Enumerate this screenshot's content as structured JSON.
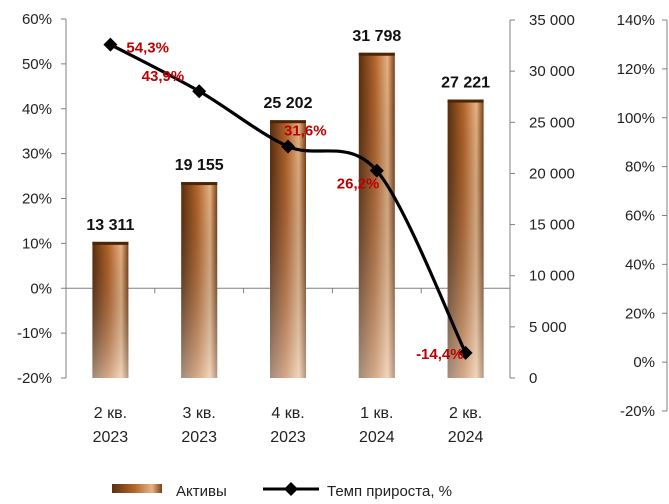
{
  "chart_data": {
    "type": "bar+line",
    "categories": [
      [
        "2 кв.",
        "2023"
      ],
      [
        "3 кв.",
        "2023"
      ],
      [
        "4 кв.",
        "2023"
      ],
      [
        "1 кв.",
        "2024"
      ],
      [
        "2 кв.",
        "2024"
      ]
    ],
    "series": [
      {
        "name": "Активы",
        "type": "bar",
        "axis": "right",
        "values": [
          13311,
          19155,
          25202,
          31798,
          27221
        ],
        "labels": [
          "13 311",
          "19 155",
          "25 202",
          "31 798",
          "27 221"
        ]
      },
      {
        "name": "Темп прироста, %",
        "type": "line",
        "axis": "left",
        "values": [
          54.3,
          43.9,
          31.6,
          26.2,
          -14.4
        ],
        "labels": [
          "54,3%",
          "43,9%",
          "31,6%",
          "26,2%",
          "-14,4%"
        ]
      }
    ],
    "left_axis": {
      "min": -20,
      "max": 60,
      "step": 10,
      "labels": [
        "-20%",
        "-10%",
        "0%",
        "10%",
        "20%",
        "30%",
        "40%",
        "50%",
        "60%"
      ]
    },
    "right_axis": {
      "min": 0,
      "max": 35000,
      "step": 5000,
      "labels": [
        "0",
        "5 000",
        "10 000",
        "15 000",
        "20 000",
        "25 000",
        "30 000",
        "35 000"
      ]
    },
    "far_right_axis": {
      "min": -20,
      "max": 140,
      "step": 20,
      "labels": [
        "-20%",
        "0%",
        "20%",
        "40%",
        "60%",
        "80%",
        "100%",
        "120%",
        "140%"
      ]
    },
    "legend": {
      "position": "bottom",
      "items": [
        "Активы",
        "Темп прироста, %"
      ]
    },
    "colors": {
      "bar_dark": "#5a2f0f",
      "bar_mid": "#b5652b",
      "bar_light": "#f0c9a2",
      "line": "#000000",
      "rate_label": "#c00000",
      "axis": "#808080"
    },
    "grid": false
  }
}
